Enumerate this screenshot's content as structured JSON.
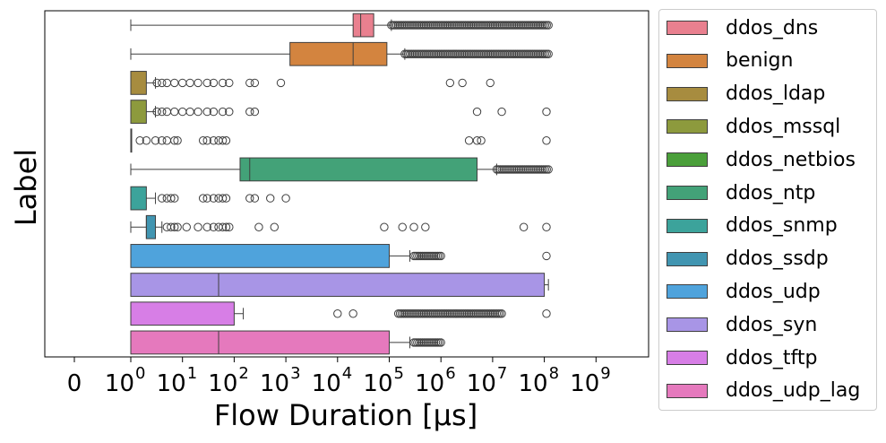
{
  "chart_data": {
    "type": "boxplot",
    "orientation": "horizontal",
    "xlabel": "Flow Duration [µs]",
    "ylabel": "Label",
    "xscale": "symlog",
    "xlim": [
      -0.63,
      10
    ],
    "tick_labels": [
      "0",
      "10",
      "10",
      "10",
      "10",
      "10",
      "10",
      "10",
      "10",
      "10",
      "10"
    ],
    "tick_exponents": [
      "",
      "0",
      "1",
      "2",
      "3",
      "4",
      "5",
      "6",
      "7",
      "8",
      "9"
    ],
    "legend_position": "outside-right",
    "series": [
      {
        "name": "ddos_dns",
        "color": "#e9808f",
        "whisker_low": 1,
        "q1": 20000,
        "median": 28000,
        "q3": 50000,
        "whisker_high": 110000,
        "outliers_range": [
          110000,
          120000000
        ]
      },
      {
        "name": "benign",
        "color": "#d3843f",
        "whisker_low": 1,
        "q1": 1200,
        "median": 20000,
        "q3": 90000,
        "whisker_high": 200000,
        "outliers_range": [
          200000,
          120000000
        ]
      },
      {
        "name": "ddos_ldap",
        "color": "#a78c3f",
        "whisker_low": 1,
        "q1": 1,
        "median": 1,
        "q3": 2,
        "whisker_high": 3,
        "outliers": [
          3.2,
          4,
          5,
          7,
          10,
          14,
          20,
          30,
          40,
          60,
          80,
          200,
          250,
          800,
          1500000,
          2600000,
          9000000
        ]
      },
      {
        "name": "ddos_mssql",
        "color": "#8d9a3d",
        "whisker_low": 1,
        "q1": 1,
        "median": 1,
        "q3": 2,
        "whisker_high": 3,
        "outliers": [
          3.2,
          4,
          5,
          7,
          10,
          14,
          20,
          30,
          40,
          60,
          80,
          200,
          250,
          5000000,
          15000000,
          110000000
        ]
      },
      {
        "name": "ddos_netbios",
        "color": "#4a9f3a",
        "whisker_low": 1,
        "q1": 1,
        "median": 1,
        "q3": 1,
        "whisker_high": 1,
        "outliers": [
          1.5,
          2,
          3,
          4,
          5,
          7,
          8,
          25,
          30,
          40,
          50,
          60,
          70,
          3500000,
          5000000,
          6000000,
          110000000
        ]
      },
      {
        "name": "ddos_ntp",
        "color": "#43a278",
        "whisker_low": 1,
        "q1": 130,
        "median": 200,
        "q3": 5000000,
        "whisker_high": 12000000,
        "outliers_range": [
          12000000,
          120000000
        ]
      },
      {
        "name": "ddos_snmp",
        "color": "#3ca39b",
        "whisker_low": 1,
        "q1": 1,
        "median": 1,
        "q3": 2,
        "whisker_high": 3,
        "outliers": [
          4,
          5,
          6,
          7,
          25,
          30,
          40,
          50,
          60,
          70,
          200,
          250,
          500,
          1000
        ]
      },
      {
        "name": "ddos_ssdp",
        "color": "#4195b1",
        "whisker_low": 1,
        "q1": 2,
        "median": 2,
        "q3": 3,
        "whisker_high": 4,
        "outliers": [
          5,
          6,
          7,
          8,
          12,
          20,
          30,
          40,
          50,
          60,
          70,
          80,
          300,
          600,
          80000,
          180000,
          300000,
          500000,
          40000000,
          110000000
        ]
      },
      {
        "name": "ddos_udp",
        "color": "#4fa3dc",
        "whisker_low": 1,
        "q1": 1,
        "median": 1,
        "q3": 100000,
        "whisker_high": 250000,
        "outliers_range": [
          300000,
          1000000
        ],
        "outliers": [
          110000000
        ]
      },
      {
        "name": "ddos_syn",
        "color": "#a895e6",
        "whisker_low": 1,
        "q1": 1,
        "median": 50,
        "q3": 100000000,
        "whisker_high": 120000000
      },
      {
        "name": "ddos_tftp",
        "color": "#d77ee6",
        "whisker_low": 1,
        "q1": 1,
        "median": 1,
        "q3": 100,
        "whisker_high": 150,
        "outliers": [
          10000,
          20000,
          110000000
        ],
        "outliers_range": [
          150000,
          15000000
        ]
      },
      {
        "name": "ddos_udp_lag",
        "color": "#e579bd",
        "whisker_low": 1,
        "q1": 1,
        "median": 50,
        "q3": 100000,
        "whisker_high": 250000,
        "outliers_range": [
          300000,
          1000000
        ]
      }
    ]
  }
}
